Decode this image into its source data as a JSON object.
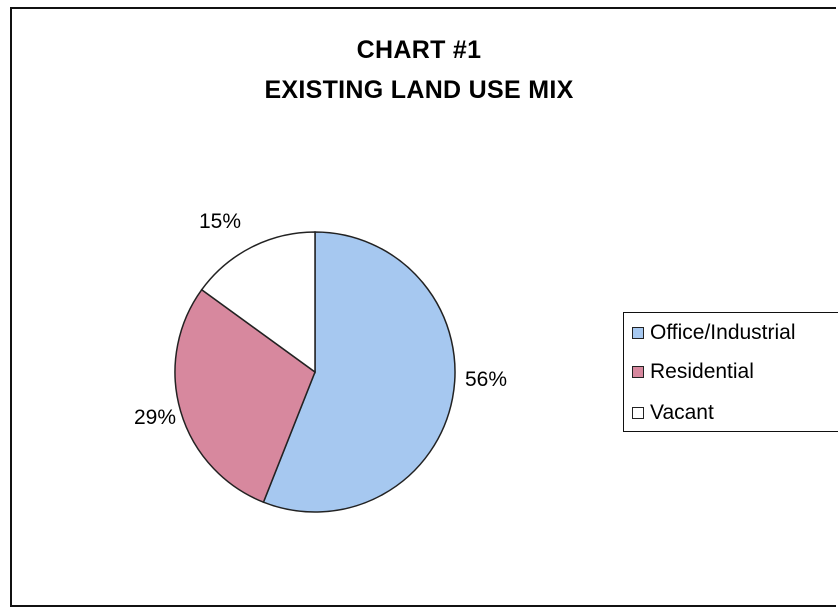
{
  "chart_data": {
    "type": "pie",
    "title_lines": [
      "CHART #1",
      "EXISTING LAND USE MIX"
    ],
    "slices": [
      {
        "name": "Office/Industrial",
        "value": 56,
        "label": "56%",
        "color": "#a6c8f0"
      },
      {
        "name": "Residential",
        "value": 29,
        "label": "29%",
        "color": "#d7889e"
      },
      {
        "name": "Vacant",
        "value": 15,
        "label": "15%",
        "color": "#ffffff"
      }
    ],
    "legend_position": "right"
  }
}
